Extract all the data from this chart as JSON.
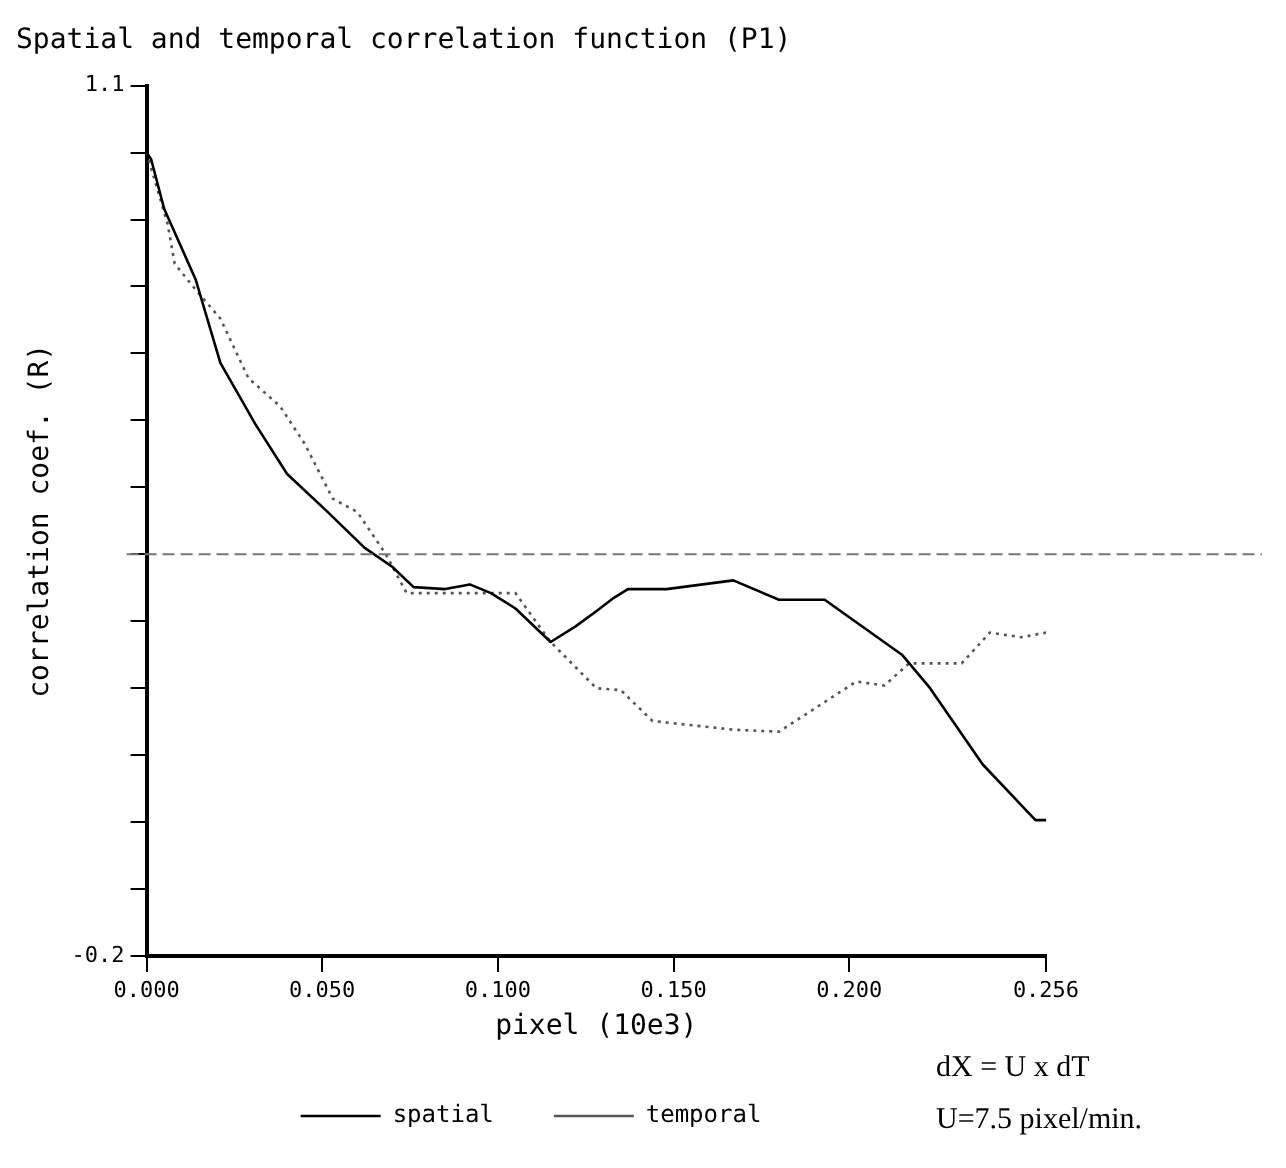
{
  "chart_data": {
    "type": "line",
    "title": "Spatial and temporal correlation function (P1)",
    "xlabel": "pixel (10e3)",
    "ylabel": "correlation coef. (R)",
    "xlim": [
      0,
      0.256
    ],
    "xticks": [
      {
        "value": 0,
        "label": "0.000"
      },
      {
        "value": 0.05,
        "label": "0.050"
      },
      {
        "value": 0.1,
        "label": "0.100"
      },
      {
        "value": 0.15,
        "label": "0.150"
      },
      {
        "value": 0.2,
        "label": "0.200"
      },
      {
        "value": 0.256,
        "label": "0.256"
      }
    ],
    "ylim": [
      -0.2,
      1.1
    ],
    "yticks": [
      {
        "value": -0.2,
        "label": "-0.2"
      },
      {
        "value": -0.1,
        "label": null
      },
      {
        "value": 0,
        "label": null
      },
      {
        "value": 0.1,
        "label": null
      },
      {
        "value": 0.2,
        "label": null
      },
      {
        "value": 0.3,
        "label": null
      },
      {
        "value": 0.4,
        "label": null
      },
      {
        "value": 0.5,
        "label": null
      },
      {
        "value": 0.6,
        "label": null
      },
      {
        "value": 0.7,
        "label": null
      },
      {
        "value": 0.8,
        "label": null
      },
      {
        "value": 0.9,
        "label": null
      },
      {
        "value": 1.0,
        "label": null
      },
      {
        "value": 1.1,
        "label": "1.1"
      }
    ],
    "series": [
      {
        "name": "spatial",
        "color": "#000000",
        "line_style": "solid",
        "x": [
          0,
          0.0013,
          0.005,
          0.014,
          0.021,
          0.031,
          0.04,
          0.051,
          0.062,
          0.07,
          0.076,
          0.085,
          0.092,
          0.098,
          0.105,
          0.115,
          0.122,
          0.128,
          0.133,
          0.137,
          0.148,
          0.167,
          0.18,
          0.193,
          0.215,
          0.223,
          0.238,
          0.253,
          0.256
        ],
        "values": [
          1.0,
          0.99,
          0.916,
          0.81,
          0.686,
          0.594,
          0.52,
          0.466,
          0.41,
          0.381,
          0.351,
          0.348,
          0.355,
          0.342,
          0.319,
          0.269,
          0.292,
          0.315,
          0.335,
          0.348,
          0.348,
          0.361,
          0.332,
          0.332,
          0.25,
          0.2,
          0.086,
          0.003,
          0.003
        ]
      },
      {
        "name": "temporal",
        "color": "#555555",
        "line_style": "dotted",
        "x": [
          0,
          0.006,
          0.008,
          0.014,
          0.021,
          0.029,
          0.038,
          0.045,
          0.053,
          0.06,
          0.068,
          0.074,
          0.105,
          0.115,
          0.128,
          0.135,
          0.144,
          0.167,
          0.18,
          0.202,
          0.21,
          0.217,
          0.232,
          0.24,
          0.249,
          0.256
        ],
        "values": [
          1.0,
          0.893,
          0.834,
          0.795,
          0.752,
          0.663,
          0.621,
          0.565,
          0.483,
          0.463,
          0.401,
          0.342,
          0.342,
          0.269,
          0.2,
          0.197,
          0.151,
          0.138,
          0.135,
          0.21,
          0.204,
          0.237,
          0.237,
          0.283,
          0.276,
          0.283
        ]
      }
    ],
    "ref_lines": [
      {
        "axis": "y",
        "value": 0.4,
        "color": "#777777",
        "line_style": "dashed"
      }
    ],
    "legend": "bottom",
    "marker": "none",
    "annotations": [
      "dX = U x dT",
      "U=7.5 pixel/min."
    ]
  }
}
